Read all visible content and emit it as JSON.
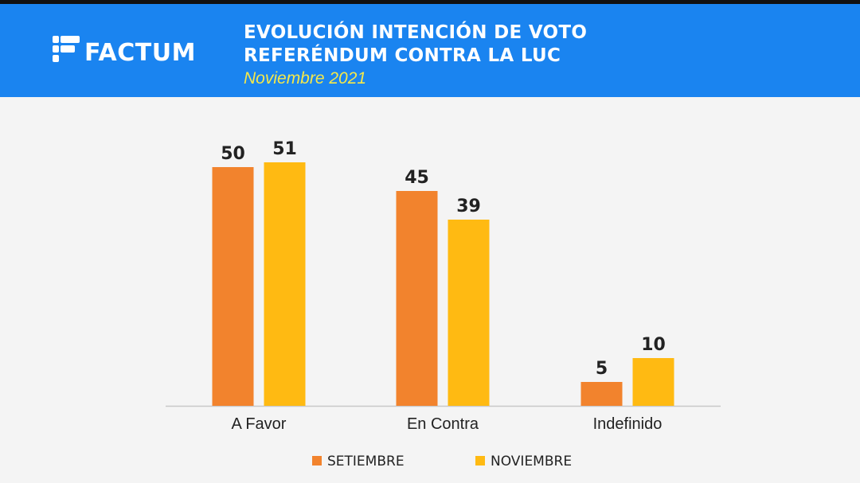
{
  "header": {
    "logo_text": "FACTUM",
    "title_line1": "EVOLUCIÓN INTENCIÓN DE VOTO",
    "title_line2": "REFERÉNDUM CONTRA LA LUC",
    "subtitle": "Noviembre 2021"
  },
  "colors": {
    "header_bg": "#1a84f0",
    "subtitle": "#f5e84a",
    "setiembre": "#f2832d",
    "noviembre": "#ffba12"
  },
  "chart_data": {
    "type": "bar",
    "categories": [
      "A Favor",
      "En Contra",
      "Indefinido"
    ],
    "series": [
      {
        "name": "SETIEMBRE",
        "values": [
          50,
          45,
          5
        ]
      },
      {
        "name": "NOVIEMBRE",
        "values": [
          51,
          39,
          10
        ]
      }
    ],
    "ylim": [
      0,
      55
    ],
    "grid": false,
    "legend": "bottom"
  }
}
